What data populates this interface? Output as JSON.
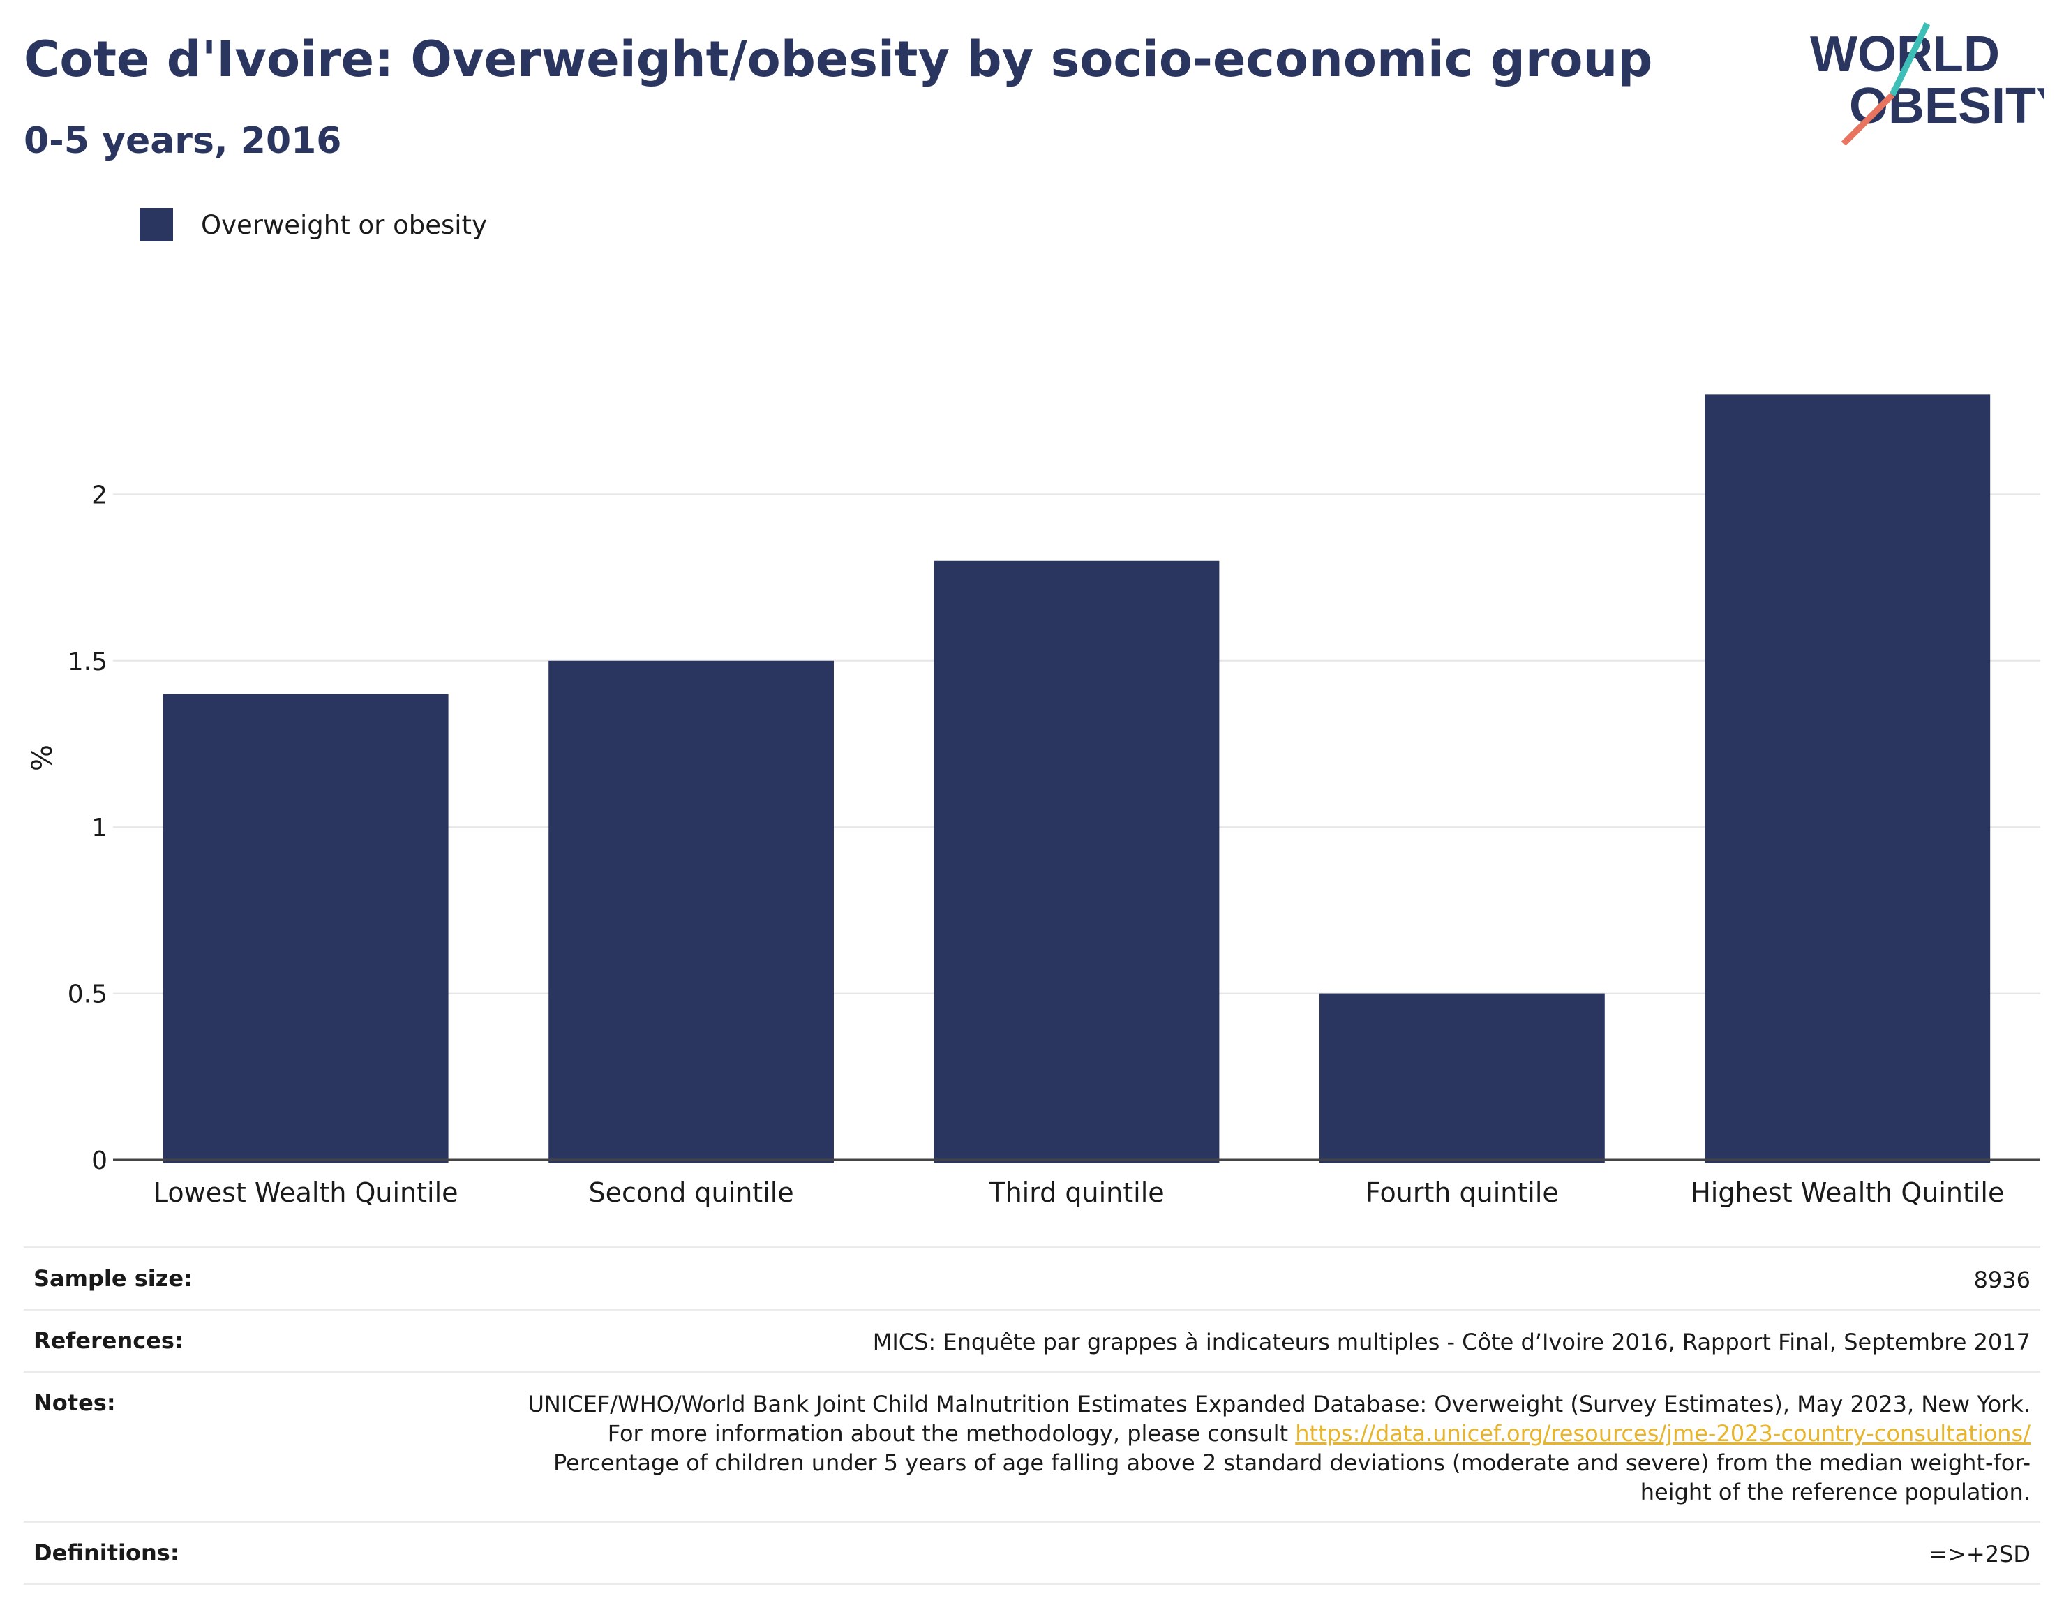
{
  "header": {
    "title": "Cote d'Ivoire: Overweight/obesity by socio-economic group",
    "subtitle": "0-5 years, 2016"
  },
  "logo": {
    "line1": "WORLD",
    "line2": "OBESITY"
  },
  "colors": {
    "bar": "#2a365f",
    "title": "#2a365f",
    "logo_teal": "#3dbfb8",
    "logo_coral": "#e8735e",
    "link": "#e8b42a"
  },
  "chart_data": {
    "type": "bar",
    "title": "",
    "xlabel": "",
    "ylabel": "%",
    "categories": [
      "Lowest Wealth Quintile",
      "Second quintile",
      "Third quintile",
      "Fourth quintile",
      "Highest Wealth Quintile"
    ],
    "series": [
      {
        "name": "Overweight or obesity",
        "values": [
          1.4,
          1.5,
          1.8,
          0.5,
          2.3
        ]
      }
    ],
    "ylim": [
      0,
      2.5
    ],
    "yticks": [
      0,
      0.5,
      1,
      1.5,
      2
    ],
    "ytick_labels": [
      "0",
      "0.5",
      "1",
      "1.5",
      "2"
    ],
    "grid": true,
    "legend_position": "top-left"
  },
  "info_table": {
    "sample_size_label": "Sample size:",
    "sample_size_value": "8936",
    "references_label": "References:",
    "references_value": "MICS: Enquête par grappes à indicateurs multiples - Côte d’Ivoire 2016, Rapport Final, Septembre 2017",
    "notes_label": "Notes:",
    "notes_text_1": "UNICEF/WHO/World Bank Joint Child Malnutrition Estimates Expanded Database: Overweight (Survey Estimates), May 2023, New York. For more information about the methodology, please consult ",
    "notes_link": "https://data.unicef.org/resources/jme-2023-country-consultations/",
    "notes_text_2": "Percentage of children under 5 years of age falling above 2 standard deviations (moderate and severe) from the median weight-for-height of the reference population.",
    "definitions_label": "Definitions:",
    "definitions_value": "=>+2SD"
  }
}
